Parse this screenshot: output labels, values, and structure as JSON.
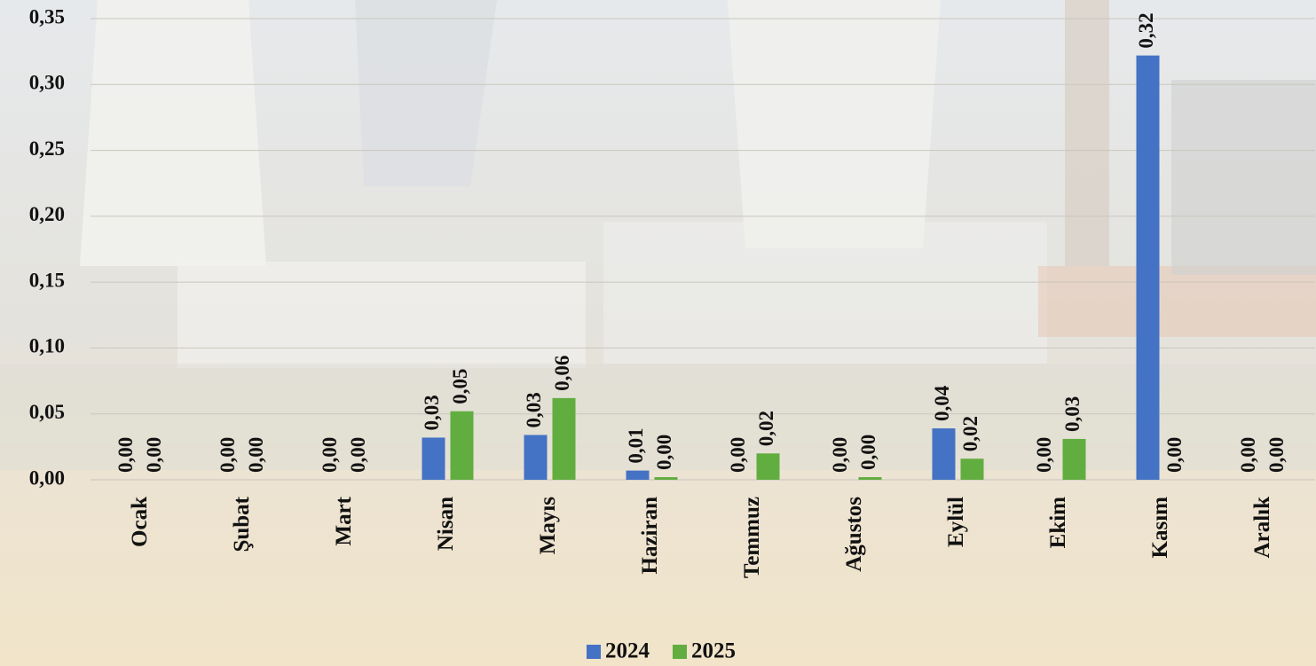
{
  "chart_data": {
    "type": "bar",
    "categories": [
      "Ocak",
      "Şubat",
      "Mart",
      "Nisan",
      "Mayıs",
      "Haziran",
      "Temmuz",
      "Ağustos",
      "Eylül",
      "Ekim",
      "Kasım",
      "Aralık"
    ],
    "series": [
      {
        "name": "2024",
        "color": "#4472c4",
        "values": [
          0,
          0,
          0,
          0.032,
          0.034,
          0.007,
          0,
          0,
          0.039,
          0,
          0.322,
          0
        ],
        "value_labels": [
          "0,00",
          "0,00",
          "0,00",
          "0,03",
          "0,03",
          "0,01",
          "0,00",
          "0,00",
          "0,04",
          "0,00",
          "0,32",
          "0,00"
        ]
      },
      {
        "name": "2025",
        "color": "#62ad3f",
        "values": [
          0,
          0,
          0,
          0.052,
          0.062,
          0.002,
          0.02,
          0.002,
          0.016,
          0.031,
          0,
          0
        ],
        "value_labels": [
          "0,00",
          "0,00",
          "0,00",
          "0,05",
          "0,06",
          "0,00",
          "0,02",
          "0,00",
          "0,02",
          "0,03",
          "0,00",
          "0,00"
        ]
      }
    ],
    "ylim": [
      0,
      0.35
    ],
    "yticks": [
      {
        "value": 0,
        "label": "0,00"
      },
      {
        "value": 0.05,
        "label": "0,05"
      },
      {
        "value": 0.1,
        "label": "0,10"
      },
      {
        "value": 0.15,
        "label": "0,15"
      },
      {
        "value": 0.2,
        "label": "0,20"
      },
      {
        "value": 0.25,
        "label": "0,25"
      },
      {
        "value": 0.3,
        "label": "0,30"
      },
      {
        "value": 0.35,
        "label": "0,35"
      }
    ],
    "grid": true,
    "legend": "bottom"
  }
}
